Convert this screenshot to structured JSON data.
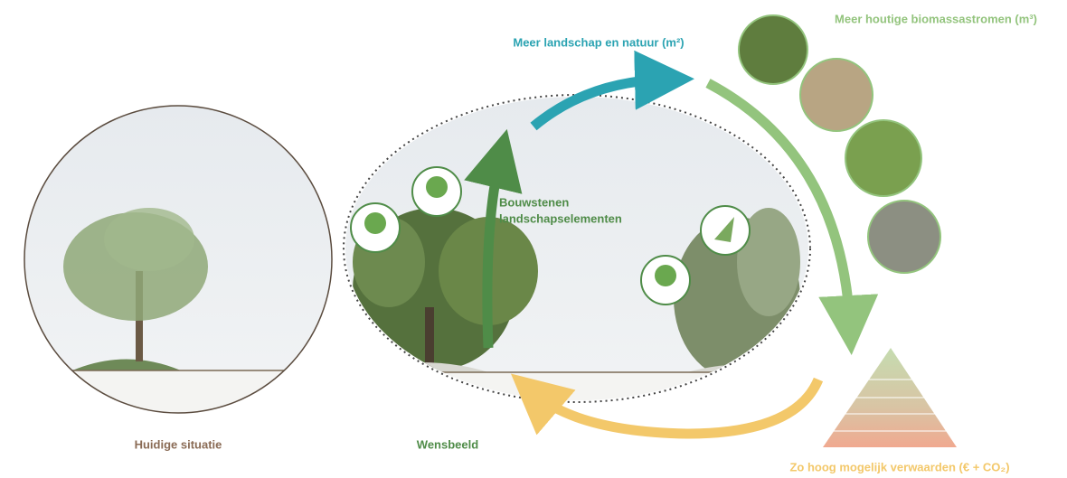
{
  "labels": {
    "landscape_arrow": "Meer landschap en natuur (m²)",
    "biomass_arrow": "Meer houtige biomassastromen (m³)",
    "building_blocks": [
      "Bouwstenen",
      "landschapselementen"
    ],
    "current": "Huidige situatie",
    "vision": "Wensbeeld",
    "value_arrow": "Zo hoog mogelijk verwaarden (€ + CO₂)"
  }
}
